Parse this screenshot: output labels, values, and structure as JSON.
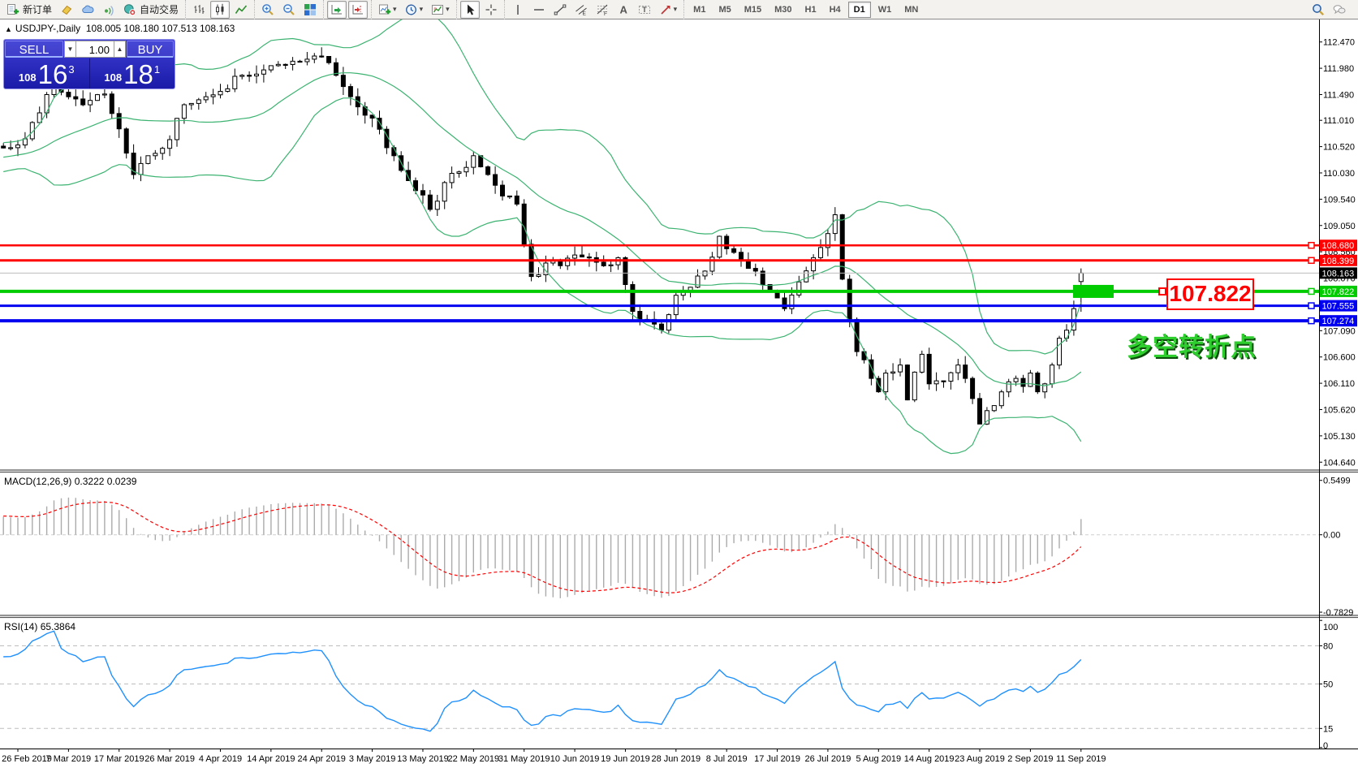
{
  "colors": {
    "accent_red": "#FF0000",
    "accent_green": "#00CC00",
    "accent_blue": "#0000F0",
    "bid_line": "#BDBDBD",
    "bid_badge": "#000000",
    "bollinger": "#3CB371",
    "macd_hist": "#ABABAB",
    "macd_signal": "#FF0000",
    "rsi_line": "#1E90FF",
    "panel_blue_top": "#3E3ED6",
    "panel_blue_bottom": "#1B1BA8",
    "annotation_green": "#2FCE2F",
    "candle_up": "#FFFFFF",
    "candle_down": "#000000",
    "candle_border": "#000000"
  },
  "toolbar": {
    "groups": [
      {
        "items": [
          {
            "name": "new-order-button",
            "icon": "new-order-icon",
            "label": "新订单"
          },
          {
            "name": "highlighter-button",
            "icon": "eraser-icon"
          },
          {
            "name": "publish-button",
            "icon": "cloud-icon"
          },
          {
            "name": "signals-button",
            "icon": "signal-icon"
          },
          {
            "name": "autotrading-button",
            "icon": "autotrading-icon",
            "label": "自动交易"
          }
        ]
      },
      {
        "items": [
          {
            "name": "bar-chart-button",
            "icon": "bar-chart-icon"
          },
          {
            "name": "candlestick-chart-button",
            "icon": "candlestick-icon",
            "active": true
          },
          {
            "name": "line-chart-button",
            "icon": "line-chart-icon"
          }
        ]
      },
      {
        "items": [
          {
            "name": "zoom-in-button",
            "icon": "zoom-in-icon"
          },
          {
            "name": "zoom-out-button",
            "icon": "zoom-out-icon"
          },
          {
            "name": "tile-windows-button",
            "icon": "tile-windows-icon"
          }
        ]
      },
      {
        "items": [
          {
            "name": "auto-scroll-button",
            "icon": "auto-scroll-icon",
            "active": true
          },
          {
            "name": "chart-shift-button",
            "icon": "chart-shift-icon",
            "active": true
          }
        ]
      },
      {
        "items": [
          {
            "name": "indicators-button",
            "icon": "add-indicator-icon",
            "dropdown": true
          },
          {
            "name": "periods-button",
            "icon": "clock-icon",
            "dropdown": true
          },
          {
            "name": "templates-button",
            "icon": "template-icon",
            "dropdown": true
          }
        ]
      },
      {
        "items": [
          {
            "name": "cursor-button",
            "icon": "cursor-icon",
            "active": true
          },
          {
            "name": "crosshair-button",
            "icon": "crosshair-icon"
          }
        ]
      },
      {
        "items": [
          {
            "name": "vertical-line-button",
            "icon": "vline-icon"
          },
          {
            "name": "horizontal-line-button",
            "icon": "hline-icon"
          },
          {
            "name": "trendline-button",
            "icon": "trendline-icon"
          },
          {
            "name": "channel-button",
            "icon": "channel-icon"
          },
          {
            "name": "fibonacci-button",
            "icon": "fibo-icon"
          },
          {
            "name": "text-button",
            "icon": "text-icon"
          },
          {
            "name": "label-button",
            "icon": "label-icon"
          },
          {
            "name": "arrows-button",
            "icon": "arrows-icon",
            "dropdown": true
          }
        ]
      }
    ],
    "timeframes": [
      {
        "label": "M1"
      },
      {
        "label": "M5"
      },
      {
        "label": "M15"
      },
      {
        "label": "M30"
      },
      {
        "label": "H1"
      },
      {
        "label": "H4"
      },
      {
        "label": "D1",
        "active": true
      },
      {
        "label": "W1"
      },
      {
        "label": "MN"
      }
    ],
    "right_icons": [
      {
        "name": "search-button",
        "icon": "search-icon"
      },
      {
        "name": "chat-button",
        "icon": "chat-icon"
      }
    ]
  },
  "chart": {
    "collapse_arrow": "▲",
    "title": "USDJPY-,Daily",
    "ohlc": "108.005 108.180 107.513 108.163"
  },
  "trade_panel": {
    "sell_label": "SELL",
    "buy_label": "BUY",
    "volume": "1.00",
    "spin_down": "▼",
    "spin_up": "▲",
    "sell_price": {
      "small": "108",
      "big": "16",
      "sup": "3"
    },
    "buy_price": {
      "small": "108",
      "big": "18",
      "sup": "1"
    }
  },
  "annotations": {
    "price_flag": "107.822",
    "turning_point": "多空转折点"
  },
  "macd_panel": {
    "name": "MACD(12,26,9)",
    "values": "0.3222 0.0239",
    "axis_labels": [
      {
        "value": 0.5499,
        "text": "0.5499"
      },
      {
        "value": 0.0,
        "text": "0.00"
      },
      {
        "value": -0.7829,
        "text": "-0.7829"
      }
    ]
  },
  "rsi_panel": {
    "name": "RSI(14)",
    "value": "65.3864",
    "axis_labels": [
      {
        "value": 100,
        "text": "100"
      },
      {
        "value": 80,
        "text": "80"
      },
      {
        "value": 50,
        "text": "50"
      },
      {
        "value": 15,
        "text": "15"
      },
      {
        "value": 0,
        "text": "0"
      }
    ],
    "dashed_levels": [
      80,
      50,
      15
    ]
  },
  "price_axis": {
    "ticks": [
      "112.470",
      "111.980",
      "111.490",
      "111.010",
      "110.520",
      "110.030",
      "109.540",
      "109.050",
      "108.560",
      "108.070",
      "107.580",
      "107.090",
      "106.600",
      "106.110",
      "105.620",
      "105.130",
      "104.640"
    ]
  },
  "date_axis": {
    "labels": [
      "26 Feb 2019",
      "7 Mar 2019",
      "17 Mar 2019",
      "26 Mar 2019",
      "4 Apr 2019",
      "14 Apr 2019",
      "24 Apr 2019",
      "3 May 2019",
      "13 May 2019",
      "22 May 2019",
      "31 May 2019",
      "10 Jun 2019",
      "19 Jun 2019",
      "28 Jun 2019",
      "8 Jul 2019",
      "17 Jul 2019",
      "26 Jul 2019",
      "5 Aug 2019",
      "14 Aug 2019",
      "23 Aug 2019",
      "2 Sep 2019",
      "11 Sep 2019"
    ]
  },
  "chart_data": {
    "type": "candlestick",
    "symbol": "USDJPY-",
    "timeframe": "Daily",
    "last_bar": {
      "open": 108.005,
      "high": 108.18,
      "low": 107.513,
      "close": 108.163
    },
    "bars": 148,
    "pre_anchors": [
      [
        0,
        109.25
      ],
      [
        18,
        110.1
      ],
      [
        30,
        110.35
      ],
      [
        39,
        110.5
      ]
    ],
    "close_anchors": [
      [
        0,
        110.55
      ],
      [
        3,
        111.15
      ],
      [
        5,
        111.8
      ],
      [
        7,
        111.45
      ],
      [
        9,
        111.3
      ],
      [
        12,
        111.5
      ],
      [
        14,
        110.85
      ],
      [
        16,
        110.0
      ],
      [
        18,
        110.35
      ],
      [
        21,
        110.65
      ],
      [
        23,
        111.3
      ],
      [
        26,
        111.45
      ],
      [
        28,
        111.55
      ],
      [
        31,
        111.85
      ],
      [
        34,
        111.95
      ],
      [
        37,
        112.05
      ],
      [
        40,
        112.15
      ],
      [
        42,
        112.2
      ],
      [
        44,
        111.85
      ],
      [
        46,
        111.45
      ],
      [
        49,
        111.05
      ],
      [
        52,
        110.35
      ],
      [
        55,
        109.7
      ],
      [
        57,
        109.35
      ],
      [
        59,
        109.85
      ],
      [
        61,
        110.05
      ],
      [
        63,
        110.35
      ],
      [
        65,
        110.0
      ],
      [
        67,
        109.6
      ],
      [
        69,
        109.45
      ],
      [
        70,
        108.7
      ],
      [
        71,
        108.1
      ],
      [
        73,
        108.35
      ],
      [
        75,
        108.3
      ],
      [
        77,
        108.5
      ],
      [
        79,
        108.45
      ],
      [
        81,
        108.3
      ],
      [
        83,
        108.45
      ],
      [
        84,
        107.95
      ],
      [
        85,
        107.45
      ],
      [
        87,
        107.3
      ],
      [
        89,
        107.1
      ],
      [
        91,
        107.75
      ],
      [
        93,
        107.9
      ],
      [
        95,
        108.2
      ],
      [
        97,
        108.85
      ],
      [
        99,
        108.55
      ],
      [
        101,
        108.25
      ],
      [
        103,
        107.95
      ],
      [
        105,
        107.7
      ],
      [
        106,
        107.5
      ],
      [
        108,
        108.0
      ],
      [
        110,
        108.45
      ],
      [
        112,
        108.9
      ],
      [
        113,
        109.25
      ],
      [
        114,
        108.05
      ],
      [
        115,
        107.3
      ],
      [
        116,
        106.7
      ],
      [
        118,
        106.2
      ],
      [
        119,
        105.95
      ],
      [
        120,
        106.3
      ],
      [
        122,
        106.45
      ],
      [
        123,
        105.8
      ],
      [
        125,
        106.65
      ],
      [
        126,
        106.1
      ],
      [
        128,
        106.15
      ],
      [
        130,
        106.45
      ],
      [
        131,
        106.2
      ],
      [
        133,
        105.35
      ],
      [
        134,
        105.6
      ],
      [
        136,
        105.95
      ],
      [
        138,
        106.2
      ],
      [
        139,
        106.05
      ],
      [
        140,
        106.3
      ],
      [
        141,
        105.95
      ],
      [
        142,
        106.1
      ],
      [
        143,
        106.45
      ],
      [
        144,
        106.95
      ],
      [
        145,
        107.1
      ],
      [
        146,
        107.5
      ],
      [
        147,
        108.163
      ]
    ],
    "bollinger": {
      "period": 20,
      "deviation": 2
    },
    "macd": {
      "fast": 12,
      "slow": 26,
      "signal": 9
    },
    "rsi": {
      "period": 14
    },
    "levels": [
      {
        "label": "108.680",
        "price": 108.68,
        "color": "#FF0000",
        "width": 2.5
      },
      {
        "label": "108.399",
        "price": 108.399,
        "color": "#FF0000",
        "width": 3
      },
      {
        "label": "107.822",
        "price": 107.822,
        "color": "#00CC00",
        "width": 4
      },
      {
        "label": "107.555",
        "price": 107.555,
        "color": "#0000F0",
        "width": 3
      },
      {
        "label": "107.274",
        "price": 107.274,
        "color": "#0000F0",
        "width": 4
      }
    ],
    "bid": {
      "label": "108.163",
      "price": 108.163
    },
    "green_zone": {
      "price": 107.822,
      "note": "thick green rectangle over latest bars"
    }
  }
}
